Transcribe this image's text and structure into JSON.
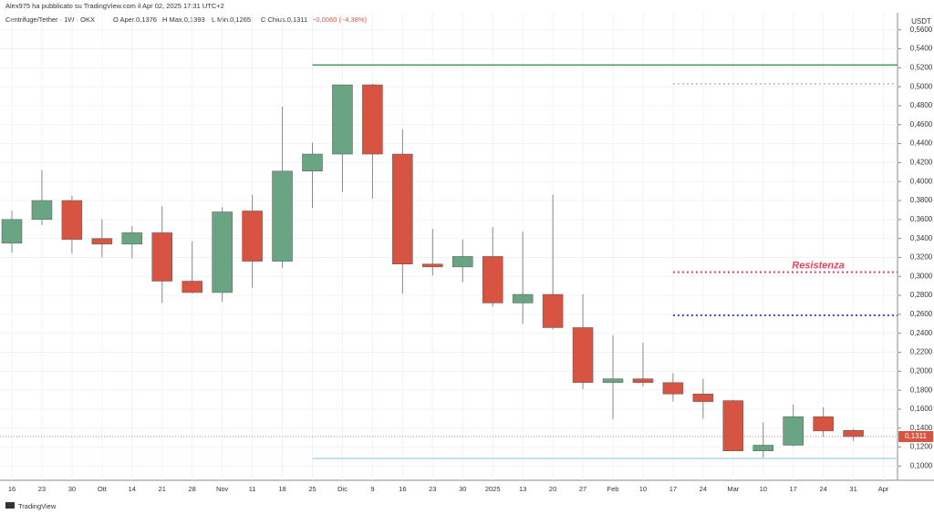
{
  "header": {
    "author": "Alex975 ha pubblicato su TradingView.com il Apr 02, 2025 17:31 UTC+2",
    "symbol": "Centrifuge/Tether · 1W · OKX",
    "items": [
      "O Aper.0,1376",
      "H Max.0,1393",
      "L Min.0,1265",
      "C Chius.0,1311",
      "−0,0060 (−4,38%)"
    ]
  },
  "footer": "TradingView",
  "chart_data": {
    "type": "candlestick",
    "y_axis_label": "USDT",
    "categories": [
      "16",
      "23",
      "30",
      "Ott",
      "14",
      "21",
      "28",
      "Nov",
      "11",
      "18",
      "25",
      "Dic",
      "9",
      "16",
      "23",
      "30",
      "2025",
      "13",
      "20",
      "27",
      "Feb",
      "10",
      "17",
      "24",
      "Mar",
      "10",
      "17",
      "24",
      "31",
      "Apr"
    ],
    "open": [
      0.335,
      0.36,
      0.38,
      0.34,
      0.334,
      0.346,
      0.295,
      0.283,
      0.369,
      0.316,
      0.411,
      0.429,
      0.502,
      0.429,
      0.313,
      0.31,
      0.321,
      0.272,
      0.281,
      0.246,
      0.188,
      0.192,
      0.188,
      0.176,
      0.169,
      0.116,
      0.122,
      0.152,
      0.1376,
      null
    ],
    "high": [
      0.369,
      0.412,
      0.385,
      0.36,
      0.353,
      0.374,
      0.337,
      0.373,
      0.386,
      0.479,
      0.441,
      0.502,
      0.503,
      0.455,
      0.35,
      0.339,
      0.352,
      0.347,
      0.386,
      0.281,
      0.238,
      0.23,
      0.198,
      0.192,
      0.17,
      0.146,
      0.165,
      0.162,
      0.1393,
      null
    ],
    "low": [
      0.325,
      0.354,
      0.324,
      0.32,
      0.319,
      0.272,
      0.282,
      0.273,
      0.288,
      0.309,
      0.372,
      0.389,
      0.382,
      0.282,
      0.301,
      0.294,
      0.268,
      0.25,
      0.244,
      0.181,
      0.149,
      0.184,
      0.168,
      0.15,
      0.116,
      0.109,
      0.121,
      0.131,
      0.1265,
      null
    ],
    "close": [
      0.36,
      0.38,
      0.339,
      0.334,
      0.346,
      0.295,
      0.283,
      0.368,
      0.316,
      0.411,
      0.429,
      0.502,
      0.429,
      0.313,
      0.31,
      0.321,
      0.272,
      0.281,
      0.246,
      0.188,
      0.192,
      0.188,
      0.176,
      0.168,
      0.116,
      0.122,
      0.152,
      0.137,
      0.1311,
      null
    ],
    "up_color": "#6aa583",
    "down_color": "#d75442",
    "ylim": [
      0.085,
      0.578
    ],
    "yticks": [
      {
        "value": 0.1,
        "label": "0,1000"
      },
      {
        "value": 0.12,
        "label": "0,1200"
      },
      {
        "value": 0.14,
        "label": "0,1400"
      },
      {
        "value": 0.16,
        "label": "0,1600"
      },
      {
        "value": 0.18,
        "label": "0,1800"
      },
      {
        "value": 0.2,
        "label": "0,2000"
      },
      {
        "value": 0.22,
        "label": "0,2200"
      },
      {
        "value": 0.24,
        "label": "0,2400"
      },
      {
        "value": 0.26,
        "label": "0,2600"
      },
      {
        "value": 0.28,
        "label": "0,2800"
      },
      {
        "value": 0.3,
        "label": "0,3000"
      },
      {
        "value": 0.32,
        "label": "0,3200"
      },
      {
        "value": 0.34,
        "label": "0,3400"
      },
      {
        "value": 0.36,
        "label": "0,3600"
      },
      {
        "value": 0.38,
        "label": "0,3800"
      },
      {
        "value": 0.4,
        "label": "0,4000"
      },
      {
        "value": 0.42,
        "label": "0,4200"
      },
      {
        "value": 0.44,
        "label": "0,4400"
      },
      {
        "value": 0.46,
        "label": "0,4600"
      },
      {
        "value": 0.48,
        "label": "0,4800"
      },
      {
        "value": 0.5,
        "label": "0,5000"
      },
      {
        "value": 0.52,
        "label": "0,5200"
      },
      {
        "value": 0.54,
        "label": "0,5400"
      },
      {
        "value": 0.56,
        "label": "0,5600"
      }
    ],
    "grid": true,
    "levels": [
      {
        "value": 0.5229,
        "color": "#3f8f4f",
        "style": "solid",
        "start_index": 10
      },
      {
        "value": 0.503,
        "color": "#c8c8c8",
        "style": "dotted",
        "start_index": 22
      },
      {
        "value": 0.3045,
        "color": "#e0425a",
        "style": "dotted",
        "start_index": 22,
        "label": "Resistenza"
      },
      {
        "value": 0.259,
        "color": "#3b4fd0",
        "style": "dotted",
        "start_index": 22
      },
      {
        "value": 0.108,
        "color": "#a9d3e3",
        "style": "solid",
        "start_index": 10
      }
    ],
    "last_price": {
      "value": 0.1311,
      "label": "0,1311"
    }
  }
}
